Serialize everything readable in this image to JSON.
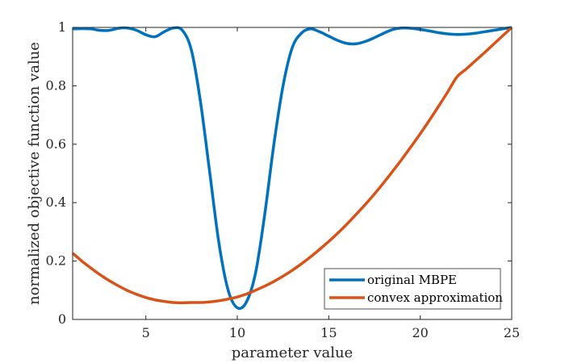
{
  "chart_data": {
    "type": "line",
    "xlabel": "parameter value",
    "ylabel": "normalized objective function value",
    "xlim": [
      1,
      25
    ],
    "ylim": [
      0,
      1
    ],
    "xticks": [
      5,
      10,
      15,
      20,
      25
    ],
    "xtick_labels": [
      "5",
      "10",
      "15",
      "20",
      "25"
    ],
    "yticks": [
      0,
      0.2,
      0.4,
      0.6,
      0.8,
      1
    ],
    "ytick_labels": [
      "0",
      "0.2",
      "0.4",
      "0.6",
      "0.8",
      "1"
    ],
    "grid": false,
    "legend_position": "bottom-right",
    "series": [
      {
        "name": "original MBPE",
        "color": "#0072BD",
        "x": [
          1,
          1.5,
          2,
          2.5,
          3,
          3.5,
          4,
          4.5,
          5,
          5.5,
          6,
          6.5,
          7,
          7.5,
          8,
          8.5,
          9,
          9.5,
          10,
          10.5,
          11,
          11.5,
          12,
          12.5,
          13,
          13.5,
          14,
          14.5,
          15,
          15.5,
          16,
          16.5,
          17,
          17.5,
          18,
          18.5,
          19,
          19.5,
          20,
          20.5,
          21,
          21.5,
          22,
          22.5,
          23,
          23.5,
          24,
          24.5,
          25
        ],
        "y": [
          0.995,
          0.996,
          0.995,
          0.99,
          0.99,
          0.997,
          0.998,
          0.99,
          0.975,
          0.968,
          0.985,
          0.998,
          0.99,
          0.92,
          0.74,
          0.5,
          0.26,
          0.1,
          0.04,
          0.06,
          0.16,
          0.36,
          0.6,
          0.8,
          0.93,
          0.98,
          0.995,
          0.985,
          0.97,
          0.955,
          0.945,
          0.944,
          0.952,
          0.965,
          0.98,
          0.993,
          0.998,
          0.997,
          0.993,
          0.988,
          0.982,
          0.978,
          0.976,
          0.977,
          0.98,
          0.985,
          0.99,
          0.995,
          1.0
        ]
      },
      {
        "name": "convex approximation",
        "color": "#D95319",
        "x": [
          1,
          1.5,
          2,
          2.5,
          3,
          3.5,
          4,
          4.5,
          5,
          5.5,
          6,
          6.5,
          7,
          7.5,
          8,
          8.5,
          9,
          9.5,
          10,
          10.5,
          11,
          11.5,
          12,
          12.5,
          13,
          13.5,
          14,
          14.5,
          15,
          15.5,
          16,
          16.5,
          17,
          17.5,
          18,
          18.5,
          19,
          19.5,
          20,
          20.5,
          21,
          21.5,
          22,
          22.5,
          23,
          23.5,
          24,
          24.5,
          25
        ],
        "y": [
          0.227,
          0.2,
          0.176,
          0.153,
          0.133,
          0.115,
          0.099,
          0.086,
          0.075,
          0.067,
          0.062,
          0.058,
          0.057,
          0.058,
          0.058,
          0.06,
          0.064,
          0.07,
          0.077,
          0.087,
          0.1,
          0.114,
          0.13,
          0.148,
          0.168,
          0.19,
          0.214,
          0.24,
          0.267,
          0.296,
          0.327,
          0.36,
          0.394,
          0.43,
          0.468,
          0.508,
          0.549,
          0.592,
          0.636,
          0.682,
          0.73,
          0.779,
          0.83,
          0.857,
          0.885,
          0.913,
          0.942,
          0.971,
          1.0
        ]
      }
    ]
  }
}
